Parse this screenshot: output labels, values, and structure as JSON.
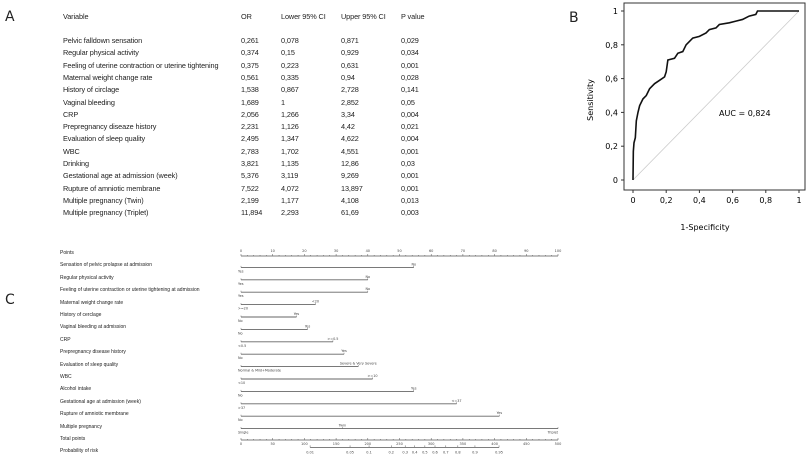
{
  "panels": {
    "a": "A",
    "b": "B",
    "c": "C"
  },
  "table": {
    "headers": [
      "Variable",
      "OR",
      "Lower 95% CI",
      "Upper 95% CI",
      "P value"
    ],
    "rows": [
      [
        "Pelvic falldown sensation",
        "0,261",
        "0,078",
        "0,871",
        "0,029"
      ],
      [
        "Regular physical activity",
        "0,374",
        "0,15",
        "0,929",
        "0,034"
      ],
      [
        "Feeling of uterine contraction or uterine tightening",
        "0,375",
        "0,223",
        "0,631",
        "0,001"
      ],
      [
        "Maternal weight change rate",
        "0,561",
        "0,335",
        "0,94",
        "0,028"
      ],
      [
        "History of circlage",
        "1,538",
        "0,867",
        "2,728",
        "0,141"
      ],
      [
        "Vaginal bleeding",
        "1,689",
        "1",
        "2,852",
        "0,05"
      ],
      [
        "CRP",
        "2,056",
        "1,266",
        "3,34",
        "0,004"
      ],
      [
        "Prepregnancy diseaze history",
        "2,231",
        "1,126",
        "4,42",
        "0,021"
      ],
      [
        "Evaluation of sleep quality",
        "2,495",
        "1,347",
        "4,622",
        "0,004"
      ],
      [
        "WBC",
        "2,783",
        "1,702",
        "4,551",
        "0,001"
      ],
      [
        "Drinking",
        "3,821",
        "1,135",
        "12,86",
        "0,03"
      ],
      [
        "Gestational age at admission (week)",
        "5,376",
        "3,119",
        "9,269",
        "0,001"
      ],
      [
        "Rupture of amniotic membrane",
        "7,522",
        "4,072",
        "13,897",
        "0,001"
      ],
      [
        "Multiple pregnancy (Twin)",
        "2,199",
        "1,177",
        "4,108",
        "0,013"
      ],
      [
        "Multiple pregnancy (Triplet)",
        "11,894",
        "2,293",
        "61,69",
        "0,003"
      ]
    ]
  },
  "chart_data": [
    {
      "type": "line",
      "xlabel": "1-Specificity",
      "ylabel": "Sensitivity",
      "xlim": [
        0,
        1
      ],
      "ylim": [
        0,
        1
      ],
      "xticks": [
        "0",
        "0,2",
        "0,4",
        "0,6",
        "0,8",
        "1"
      ],
      "yticks": [
        "0",
        "0,2",
        "0,4",
        "0,6",
        "0,8",
        "1"
      ],
      "annotation": "AUC = 0,824",
      "reference_line": true,
      "grid": false,
      "colors": {
        "curve": "#111111",
        "reference": "#cccccc"
      },
      "x": [
        0,
        0.002,
        0.006,
        0.014,
        0.02,
        0.03,
        0.04,
        0.06,
        0.08,
        0.1,
        0.13,
        0.16,
        0.19,
        0.2,
        0.21,
        0.25,
        0.27,
        0.3,
        0.32,
        0.36,
        0.4,
        0.44,
        0.46,
        0.5,
        0.52,
        0.58,
        0.62,
        0.66,
        0.7,
        0.74,
        0.75,
        1
      ],
      "y": [
        0,
        0.17,
        0.22,
        0.25,
        0.35,
        0.4,
        0.44,
        0.48,
        0.5,
        0.54,
        0.57,
        0.59,
        0.61,
        0.64,
        0.71,
        0.72,
        0.75,
        0.76,
        0.8,
        0.84,
        0.85,
        0.87,
        0.89,
        0.9,
        0.92,
        0.93,
        0.94,
        0.95,
        0.97,
        0.98,
        1,
        1
      ]
    },
    {
      "type": "nomogram",
      "points_axis": {
        "label": "Points",
        "min": 0,
        "max": 100,
        "ticks": [
          "0",
          "10",
          "20",
          "30",
          "40",
          "50",
          "60",
          "70",
          "80",
          "90",
          "100"
        ]
      },
      "variables": [
        {
          "label": "Sensation of pelvic prolapse at admission",
          "max_points": 54.5,
          "levels": [
            {
              "text": "Yes",
              "points": 0
            },
            {
              "text": "No",
              "points": 54.5
            }
          ]
        },
        {
          "label": "Regular physical activity",
          "max_points": 40,
          "levels": [
            {
              "text": "Yes",
              "points": 0
            },
            {
              "text": "No",
              "points": 40
            }
          ]
        },
        {
          "label": "Feeling of uterine contraction or uterine tightening at admission",
          "max_points": 40,
          "levels": [
            {
              "text": "Yes",
              "points": 0
            },
            {
              "text": "No",
              "points": 40
            }
          ]
        },
        {
          "label": "Maternal weight change rate",
          "max_points": 23.5,
          "levels": [
            {
              "text": ">=20",
              "points": 0
            },
            {
              "text": "<20",
              "points": 23.5
            }
          ]
        },
        {
          "label": "History of cerclage",
          "max_points": 17.5,
          "levels": [
            {
              "text": "No",
              "points": 0
            },
            {
              "text": "Yes",
              "points": 17.5
            }
          ]
        },
        {
          "label": "Vaginal bleeding at admission",
          "max_points": 21,
          "levels": [
            {
              "text": "No",
              "points": 0
            },
            {
              "text": "Yes",
              "points": 21
            }
          ]
        },
        {
          "label": "CRP",
          "max_points": 29,
          "levels": [
            {
              "text": "<0.5",
              "points": 0
            },
            {
              "text": ">=0.5",
              "points": 29
            }
          ]
        },
        {
          "label": "Prepregnancy disease history",
          "max_points": 32.5,
          "levels": [
            {
              "text": "No",
              "points": 0
            },
            {
              "text": "Yes",
              "points": 32.5
            }
          ]
        },
        {
          "label": "Evaluation of sleep quality",
          "max_points": 37,
          "levels": [
            {
              "text": "Normal & Mild+Moderate",
              "points": 0
            },
            {
              "text": "Severe & Very Severe",
              "points": 37
            }
          ]
        },
        {
          "label": "WBC",
          "max_points": 41.5,
          "levels": [
            {
              "text": "<10",
              "points": 0
            },
            {
              "text": ">=10",
              "points": 41.5
            }
          ]
        },
        {
          "label": "Alcohol intake",
          "max_points": 54.5,
          "levels": [
            {
              "text": "No",
              "points": 0
            },
            {
              "text": "Yes",
              "points": 54.5
            }
          ]
        },
        {
          "label": "Gestational age at admission (week)",
          "max_points": 68,
          "levels": [
            {
              "text": ">37",
              "points": 0
            },
            {
              "text": "<=37",
              "points": 68
            }
          ]
        },
        {
          "label": "Rupture of amniotic membrane",
          "max_points": 81.5,
          "levels": [
            {
              "text": "No",
              "points": 0
            },
            {
              "text": "Yes",
              "points": 81.5
            }
          ]
        },
        {
          "label": "Multiple pregnancy",
          "max_points": 100,
          "levels": [
            {
              "text": "Single",
              "points": 0
            },
            {
              "text": "Twin",
              "points": 32
            },
            {
              "text": "Triplet",
              "points": 100
            }
          ]
        }
      ],
      "total_points_axis": {
        "label": "Total points",
        "min": 0,
        "max": 500,
        "ticks": [
          "0",
          "50",
          "100",
          "150",
          "200",
          "250",
          "300",
          "350",
          "400",
          "450",
          "500"
        ]
      },
      "probability_axis": {
        "label": "Probability of risk",
        "ticks": [
          {
            "text": "0.01",
            "total_points": 109
          },
          {
            "text": "0.05",
            "total_points": 172
          },
          {
            "text": "0.1",
            "total_points": 202
          },
          {
            "text": "0.2",
            "total_points": 237
          },
          {
            "text": "0.3",
            "total_points": 259
          },
          {
            "text": "0.4",
            "total_points": 274
          },
          {
            "text": "0.5",
            "total_points": 290
          },
          {
            "text": "0.6",
            "total_points": 306
          },
          {
            "text": "0.7",
            "total_points": 323
          },
          {
            "text": "0.8",
            "total_points": 342
          },
          {
            "text": "0.9",
            "total_points": 369
          },
          {
            "text": "0.95",
            "total_points": 407
          }
        ]
      }
    }
  ]
}
